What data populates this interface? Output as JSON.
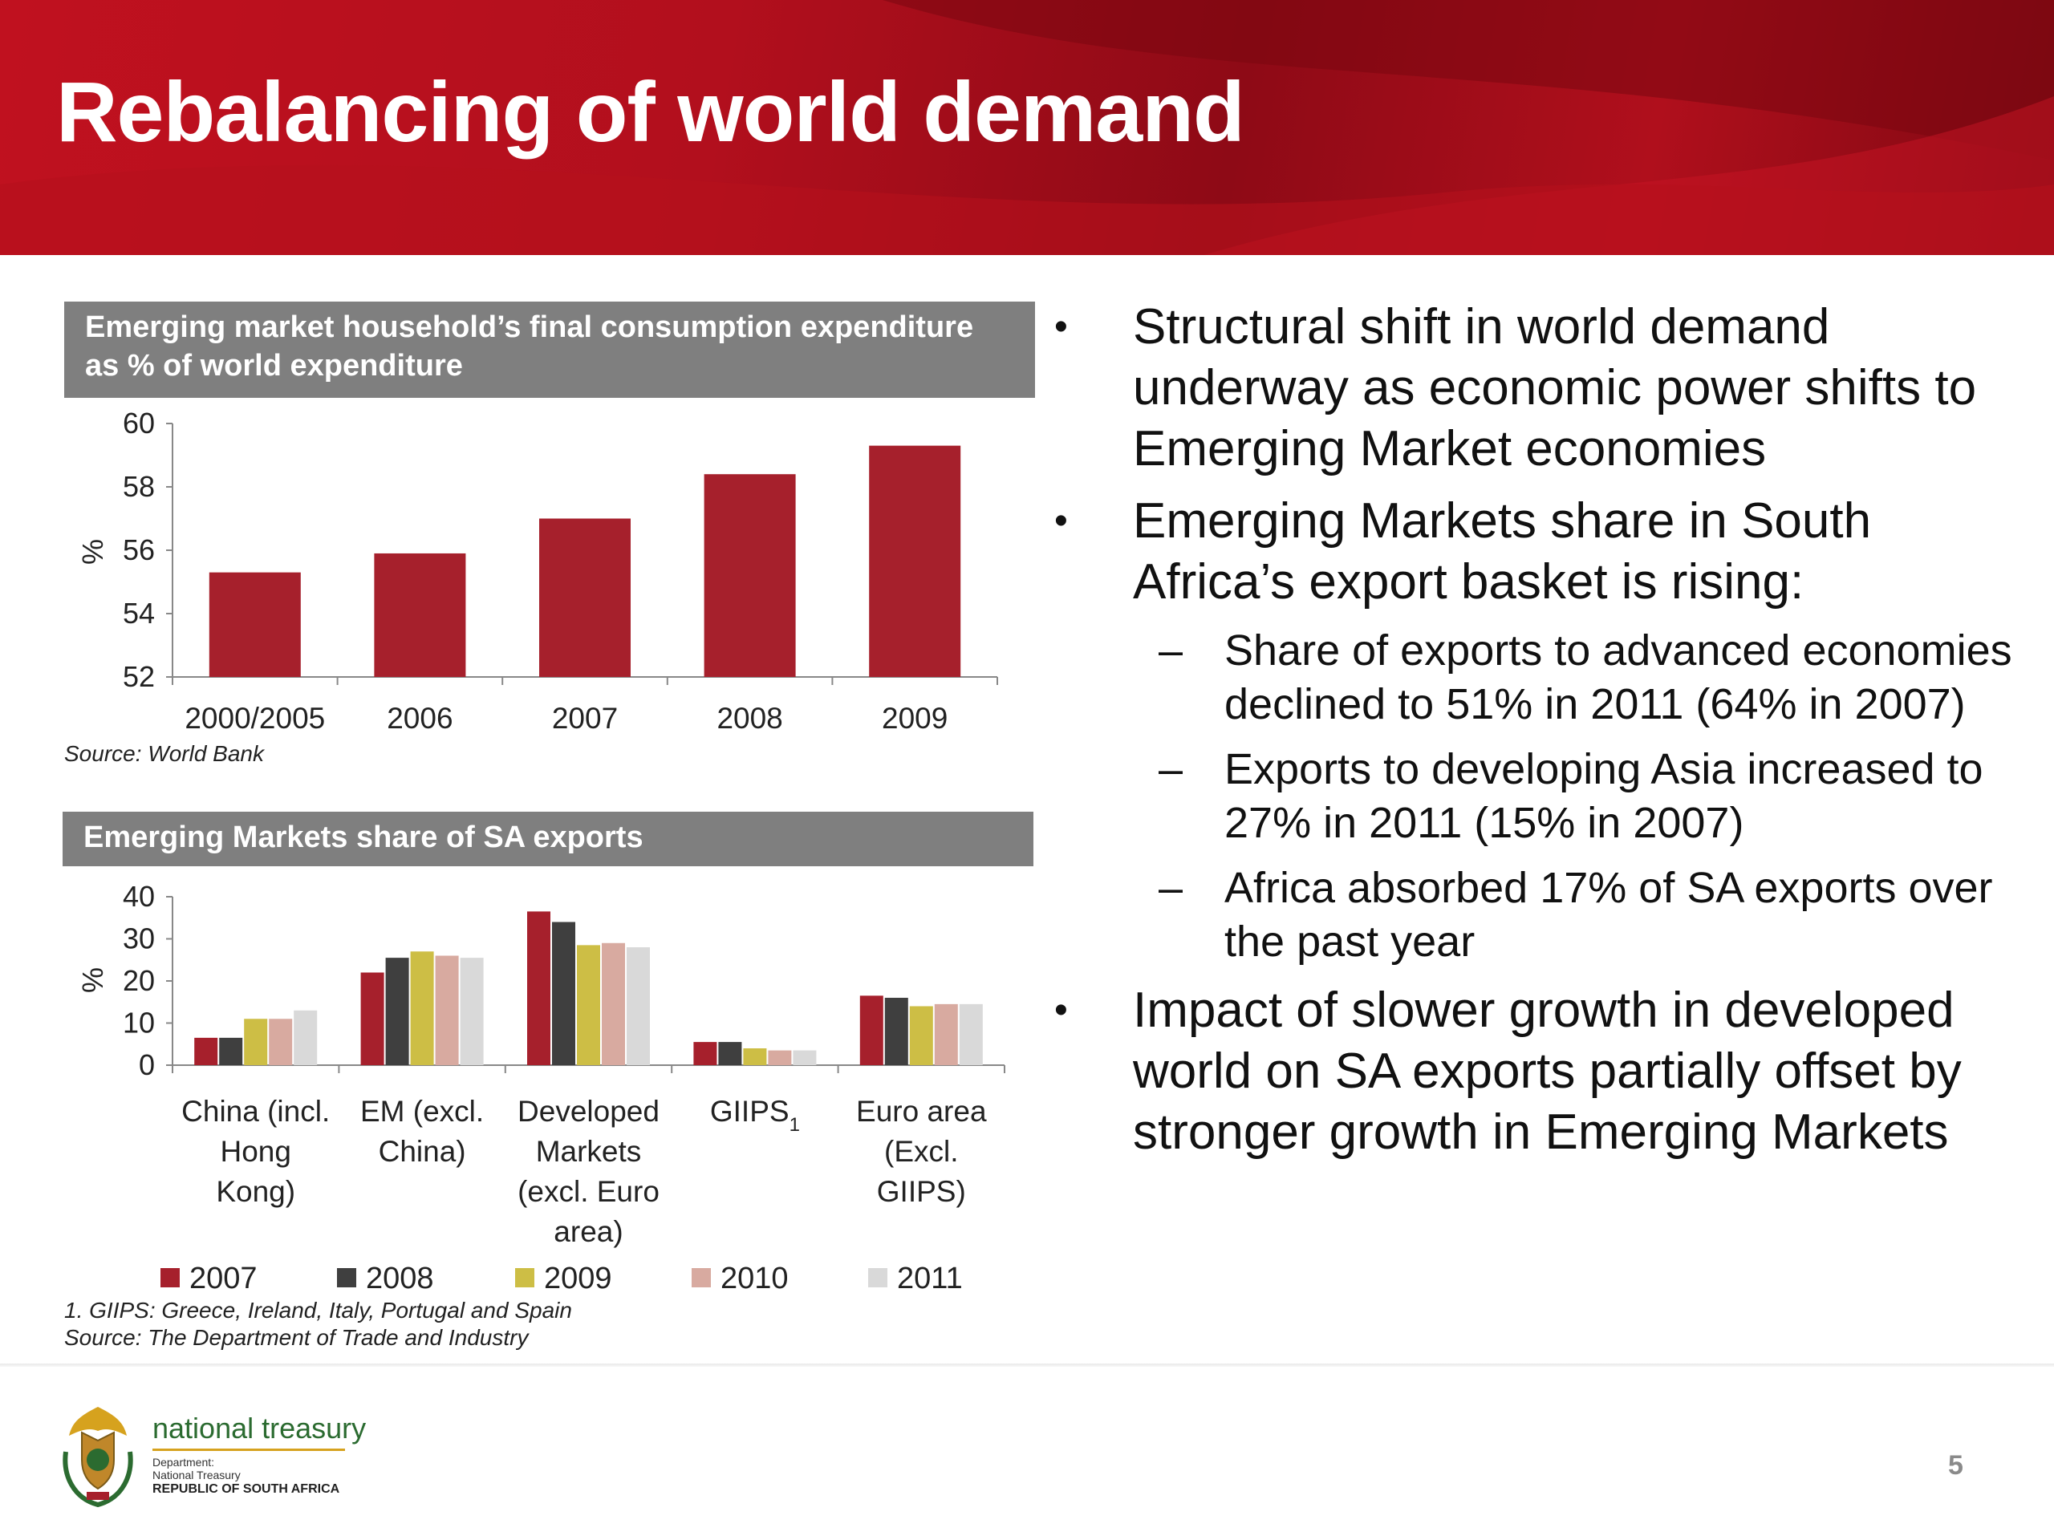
{
  "title": "Rebalancing of world demand",
  "chart1": {
    "header": "Emerging market household’s final consumption expenditure as % of world expenditure",
    "source": "Source: World Bank"
  },
  "chart2": {
    "header": "Emerging Markets share of SA exports",
    "footnote": "1. GIIPS: Greece, Ireland, Italy, Portugal and Spain",
    "source": "Source: The Department of Trade and Industry"
  },
  "chart_data": [
    {
      "type": "bar",
      "title": "Emerging market household’s final consumption expenditure as % of world expenditure",
      "categories": [
        "2000/2005",
        "2006",
        "2007",
        "2008",
        "2009"
      ],
      "values": [
        55.3,
        55.9,
        57.0,
        58.4,
        59.3
      ],
      "ylabel": "%",
      "ylim": [
        52,
        60
      ],
      "yticks": [
        52,
        54,
        56,
        58,
        60
      ],
      "color": "#a6202c",
      "grid": false
    },
    {
      "type": "bar",
      "title": "Emerging Markets share of SA exports",
      "categories": [
        [
          "China (incl.",
          "Hong",
          "Kong)"
        ],
        [
          "EM (excl.",
          "China)"
        ],
        [
          "Developed",
          "Markets",
          "(excl. Euro",
          "area)"
        ],
        [
          "GIIPS",
          "1"
        ],
        [
          "Euro area",
          "(Excl.",
          "GIIPS)"
        ]
      ],
      "series": [
        {
          "name": "2007",
          "color": "#a6202c",
          "values": [
            6.5,
            22,
            36.5,
            5.5,
            16.5
          ]
        },
        {
          "name": "2008",
          "color": "#3f3f3f",
          "values": [
            6.5,
            25.5,
            34,
            5.5,
            16
          ]
        },
        {
          "name": "2009",
          "color": "#cdbe45",
          "values": [
            11,
            27,
            28.5,
            4,
            14
          ]
        },
        {
          "name": "2010",
          "color": "#d8aaa0",
          "values": [
            11,
            26,
            29,
            3.5,
            14.5
          ]
        },
        {
          "name": "2011",
          "color": "#d9d9d9",
          "values": [
            13,
            25.5,
            28,
            3.5,
            14.5
          ]
        }
      ],
      "ylabel": "%",
      "ylim": [
        0,
        40
      ],
      "yticks": [
        0,
        10,
        20,
        30,
        40
      ],
      "legend": "bottom",
      "grid": false
    }
  ],
  "bullets": [
    {
      "text": "Structural shift in world demand underway as economic power shifts to Emerging Market economies",
      "subs": []
    },
    {
      "text": "Emerging Markets share in South Africa’s export basket is rising:",
      "subs": [
        "Share of exports to advanced economies declined to 51% in 2011 (64% in 2007)",
        "Exports to developing Asia increased to 27% in 2011 (15% in 2007)",
        "Africa absorbed 17% of SA exports over the past year"
      ]
    },
    {
      "text": "Impact of slower growth in developed world on SA exports partially offset by stronger growth in Emerging Markets",
      "subs": []
    }
  ],
  "bullet_char": "•",
  "dash_char": "–",
  "footer": {
    "org_name": "national treasury",
    "dept_line1": "Department:",
    "dept_line2": "National Treasury",
    "country": "REPUBLIC OF SOUTH AFRICA",
    "page_number": "5"
  }
}
